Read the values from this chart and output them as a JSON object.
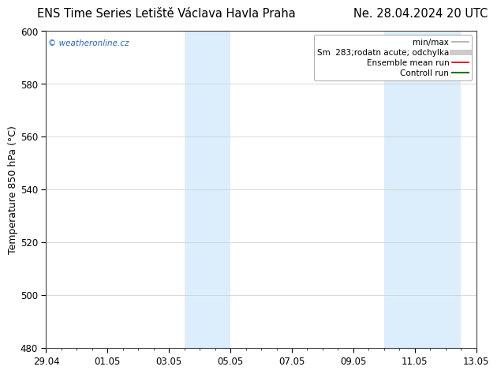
{
  "title": "ENS Time Series Letiště Václava Havla Praha",
  "title_right": "Ne. 28.04.2024 20 UTC",
  "ylabel": "Temperature 850 hPa (°C)",
  "ylim": [
    480,
    600
  ],
  "yticks": [
    480,
    500,
    520,
    540,
    560,
    580,
    600
  ],
  "xlim_start": 0,
  "xlim_end": 14,
  "xtick_labels": [
    "29.04",
    "01.05",
    "03.05",
    "05.05",
    "07.05",
    "09.05",
    "11.05",
    "13.05"
  ],
  "xtick_positions": [
    0,
    2,
    4,
    6,
    8,
    10,
    12,
    14
  ],
  "shaded_bands": [
    {
      "x_start": 4.5,
      "x_end": 6.0
    },
    {
      "x_start": 11.0,
      "x_end": 13.5
    }
  ],
  "shade_color": "#dceefb",
  "watermark": "© weatheronline.cz",
  "watermark_color": "#2266cc",
  "legend_entries": [
    {
      "label": "min/max",
      "color": "#aaaaaa",
      "lw": 1.2
    },
    {
      "label": "Sm  283;rodatn acute; odchylka",
      "color": "#cccccc",
      "lw": 5
    },
    {
      "label": "Ensemble mean run",
      "color": "#cc0000",
      "lw": 1.2
    },
    {
      "label": "Controll run",
      "color": "#007700",
      "lw": 1.5
    }
  ],
  "title_fontsize": 10.5,
  "axis_label_fontsize": 9,
  "tick_fontsize": 8.5,
  "legend_fontsize": 7.5,
  "bg_color": "#ffffff",
  "grid_color": "#cccccc"
}
